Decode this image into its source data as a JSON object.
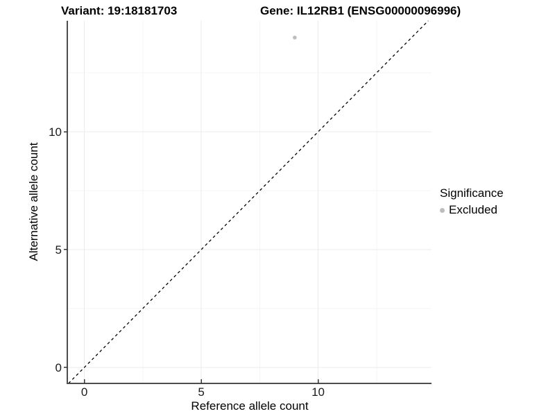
{
  "chart_data": {
    "type": "scatter",
    "title_left": "Variant: 19:18181703",
    "title_right": "Gene: IL12RB1 (ENSG00000096996)",
    "xlabel": "Reference allele count",
    "ylabel": "Alternative allele count",
    "xlim": [
      -0.73,
      14.85
    ],
    "ylim": [
      -0.68,
      14.71
    ],
    "x_ticks": [
      0,
      5,
      10
    ],
    "y_ticks": [
      0,
      5,
      10
    ],
    "x_minor_ticks": [
      2.5,
      7.5,
      12.5
    ],
    "y_minor_ticks": [
      2.5,
      7.5,
      12.5
    ],
    "grid": true,
    "points": [
      {
        "x": 9,
        "y": 14,
        "series": "Excluded"
      }
    ],
    "reference_line": {
      "type": "identity",
      "slope": 1,
      "intercept": 0,
      "style": "dashed",
      "color": "#000000"
    },
    "legend": {
      "title": "Significance",
      "position": "right",
      "items": [
        {
          "label": "Excluded",
          "color": "#bdbdbd",
          "marker": "circle"
        }
      ]
    },
    "colors": {
      "point": "#bdbdbd",
      "axis_line": "#4d4d4d",
      "tick_mark": "#333333",
      "grid_major": "#ebebeb",
      "grid_minor": "#f4f4f4",
      "text": "#000000"
    }
  }
}
